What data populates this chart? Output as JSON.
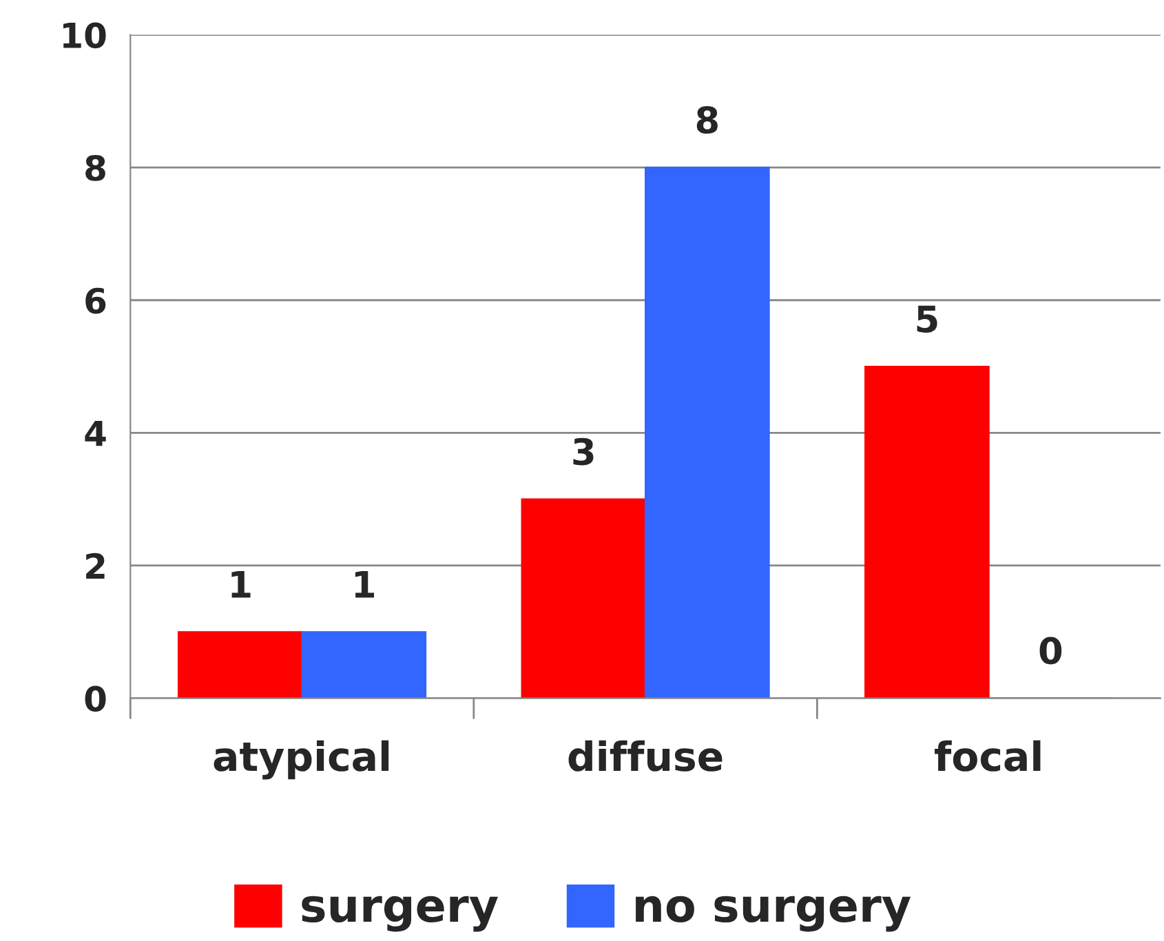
{
  "chart_data": {
    "type": "bar",
    "categories": [
      "atypical",
      "diffuse",
      "focal"
    ],
    "series": [
      {
        "name": "surgery",
        "color": "#ff0000",
        "values": [
          1,
          3,
          5
        ]
      },
      {
        "name": "no surgery",
        "color": "#3366ff",
        "values": [
          1,
          8,
          0
        ]
      }
    ],
    "ylim": [
      0,
      10
    ],
    "yticks": [
      0,
      2,
      4,
      6,
      8,
      10
    ],
    "grid": "y",
    "data_labels": true,
    "legend": "bottom"
  }
}
